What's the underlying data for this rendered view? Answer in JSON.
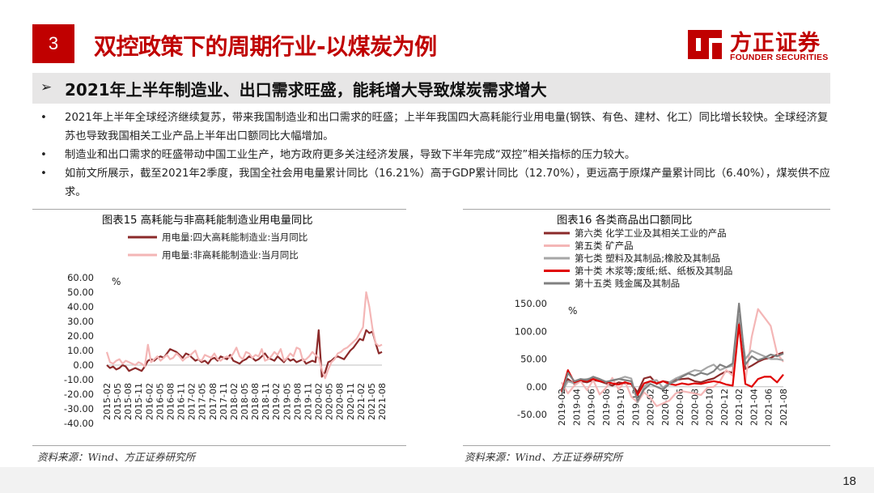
{
  "header": {
    "section_number": "3",
    "title": "双控政策下的周期行业-以煤炭为例",
    "logo_cn": "方正证券",
    "logo_en": "FOUNDER SECURITIES"
  },
  "subtitle": {
    "arrow": "➢",
    "text": "2021年上半年制造业、出口需求旺盛，能耗增大导致煤炭需求增大"
  },
  "bullets": [
    {
      "dot": "•",
      "text": "2021年上半年全球经济继续复苏，带来我国制造业和出口需求的旺盛；上半年我国四大高耗能行业用电量(钢铁、有色、建材、化工）同比增长较快。全球经济复苏也导致我国相关工业产品上半年出口额同比大幅增加。"
    },
    {
      "dot": "•",
      "text": "制造业和出口需求的旺盛带动中国工业生产，地方政府更多关注经济发展，导致下半年完成“双控”相关指标的压力较大。"
    },
    {
      "dot": "•",
      "text": "如前文所展示，截至2021年2季度，我国全社会用电量累计同比（16.21%）高于GDP累计同比（12.70%），更远高于原煤产量累计同比（6.40%），煤炭供不应求。"
    }
  ],
  "colors": {
    "brand_red": "#c00000",
    "dark_red": "#8b2a2a",
    "pink": "#f0a8a8",
    "light_pink": "#f4b6b6",
    "gray": "#a6a6a6",
    "red": "#e00000",
    "dark_gray": "#808080"
  },
  "chart_left": {
    "title": "图表15 高耗能与非高耗能制造业用电量同比",
    "source": "资料来源：Wind、方正证券研究所",
    "unit": "%",
    "chart_data": {
      "type": "line",
      "ylim": [
        -40,
        60
      ],
      "yticks": [
        "60.00",
        "50.00",
        "40.00",
        "30.00",
        "20.00",
        "10.00",
        "0.00",
        "-10.00",
        "-20.00",
        "-30.00",
        "-40.00"
      ],
      "xticks": [
        "2015-02",
        "2015-05",
        "2015-08",
        "2015-11",
        "2016-02",
        "2016-05",
        "2016-08",
        "2016-11",
        "2017-02",
        "2017-05",
        "2017-08",
        "2017-11",
        "2018-02",
        "2018-05",
        "2018-08",
        "2018-11",
        "2019-02",
        "2019-05",
        "2019-08",
        "2019-11",
        "2020-02",
        "2020-05",
        "2020-08",
        "2020-11",
        "2021-02",
        "2021-05",
        "2021-08"
      ],
      "legend_placement": "top-left",
      "grid": false,
      "series": [
        {
          "name": "用电量:四大高耗能制造业:当月同比",
          "color_key": "dark_red",
          "values": [
            0,
            -2,
            -1,
            -3,
            -2,
            0,
            -1,
            -4,
            -3,
            -2,
            -3,
            -4,
            -1,
            3,
            4,
            3,
            5,
            6,
            5,
            8,
            11,
            10,
            9,
            7,
            5,
            8,
            7,
            5,
            3,
            4,
            2,
            3,
            1,
            4,
            5,
            3,
            6,
            5,
            4,
            7,
            3,
            2,
            1,
            3,
            4,
            6,
            5,
            3,
            4,
            6,
            8,
            5,
            4,
            3,
            6,
            4,
            2,
            5,
            3,
            4,
            2,
            3,
            4,
            1,
            2,
            3,
            2,
            24,
            -8,
            -5,
            2,
            3,
            5,
            6,
            5,
            4,
            7,
            10,
            12,
            15,
            18,
            17,
            24,
            22,
            23,
            15,
            8,
            9
          ]
        },
        {
          "name": "用电量:非高耗能制造业:当月同比",
          "color_key": "light_pink",
          "values": [
            9,
            2,
            1,
            3,
            4,
            1,
            3,
            2,
            1,
            0,
            2,
            1,
            -1,
            14,
            2,
            4,
            6,
            3,
            5,
            7,
            4,
            5,
            8,
            6,
            3,
            5,
            6,
            8,
            10,
            4,
            3,
            7,
            6,
            5,
            8,
            4,
            3,
            5,
            6,
            5,
            8,
            12,
            6,
            4,
            9,
            8,
            5,
            7,
            6,
            11,
            3,
            4,
            6,
            9,
            7,
            11,
            3,
            5,
            8,
            6,
            12,
            11,
            3,
            4,
            6,
            9,
            7,
            5,
            -3,
            -9,
            -3,
            2,
            4,
            8,
            9,
            11,
            12,
            14,
            16,
            18,
            22,
            26,
            50,
            40,
            25,
            15,
            13,
            14
          ]
        }
      ]
    }
  },
  "chart_right": {
    "title": "图表16 各类商品出口额同比",
    "source": "资料来源：Wind、方正证券研究所",
    "unit": "%",
    "chart_data": {
      "type": "line",
      "ylim": [
        -50,
        150
      ],
      "yticks": [
        "150.00",
        "100.00",
        "50.00",
        "0.00",
        "-50.00"
      ],
      "xticks": [
        "2019-02",
        "2019-04",
        "2019-06",
        "2019-08",
        "2019-10",
        "2019-12",
        "2020-02",
        "2020-04",
        "2020-06",
        "2020-08",
        "2020-10",
        "2020-12",
        "2021-02",
        "2021-04",
        "2021-06",
        "2021-08"
      ],
      "legend_placement": "top",
      "grid": false,
      "series": [
        {
          "name": "第六类 化学工业及其相关工业的产品",
          "color_key": "dark_red",
          "values": [
            -5,
            14,
            5,
            10,
            8,
            12,
            10,
            6,
            2,
            8,
            6,
            5,
            -10,
            15,
            18,
            5,
            10,
            8,
            12,
            14,
            15,
            10,
            8,
            12,
            15,
            22,
            28,
            25,
            115,
            32,
            38,
            45,
            50,
            52,
            58,
            62
          ]
        },
        {
          "name": "第五类 矿产品",
          "color_key": "light_pink",
          "values": [
            8,
            -12,
            2,
            10,
            -6,
            12,
            -14,
            -2,
            16,
            -5,
            10,
            -18,
            -28,
            -10,
            -20,
            -35,
            -30,
            -25,
            -12,
            -8,
            -10,
            -12,
            -15,
            -2,
            0,
            10,
            30,
            20,
            110,
            10,
            90,
            140,
            125,
            110,
            60,
            45
          ]
        },
        {
          "name": "第七类 塑料及其制品;橡胶及其制品",
          "color_key": "gray",
          "values": [
            -10,
            10,
            6,
            12,
            14,
            16,
            13,
            8,
            12,
            14,
            18,
            15,
            -28,
            0,
            10,
            12,
            -2,
            8,
            15,
            20,
            25,
            30,
            28,
            35,
            40,
            30,
            35,
            38,
            130,
            50,
            65,
            60,
            55,
            50,
            50,
            48
          ]
        },
        {
          "name": "第十类 木浆等;废纸;纸、纸板及其制品",
          "color_key": "red",
          "values": [
            -10,
            30,
            8,
            12,
            10,
            14,
            10,
            9,
            6,
            4,
            8,
            5,
            -15,
            6,
            10,
            6,
            10,
            5,
            3,
            6,
            4,
            6,
            5,
            8,
            10,
            8,
            4,
            2,
            112,
            5,
            0,
            14,
            18,
            18,
            8,
            22
          ]
        },
        {
          "name": "第十五类 贱金属及其制品",
          "color_key": "dark_gray",
          "values": [
            -15,
            25,
            10,
            14,
            12,
            18,
            14,
            9,
            11,
            14,
            12,
            10,
            -25,
            -5,
            5,
            0,
            -5,
            5,
            10,
            18,
            24,
            20,
            25,
            22,
            28,
            40,
            35,
            42,
            160,
            40,
            55,
            48,
            52,
            58,
            55,
            60
          ]
        }
      ]
    }
  },
  "page": {
    "number": "18"
  }
}
